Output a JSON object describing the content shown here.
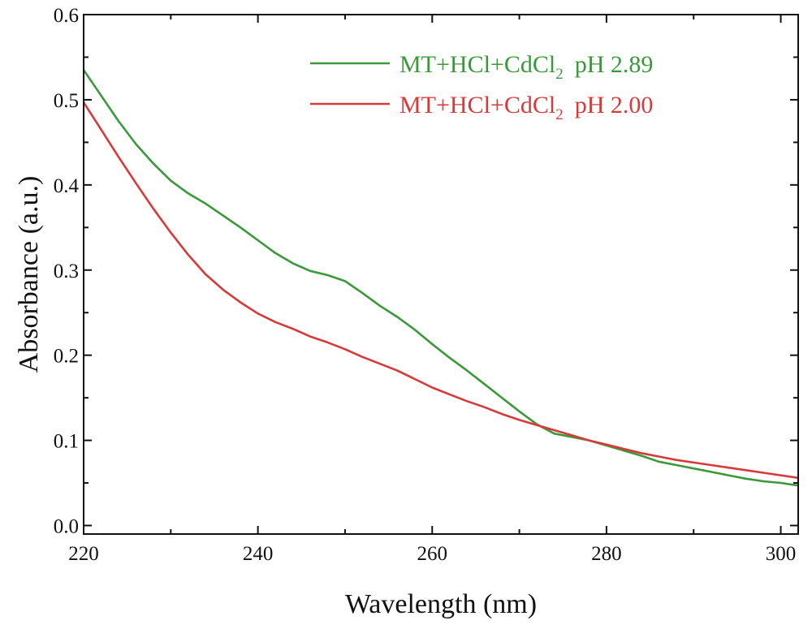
{
  "chart_data": {
    "type": "line",
    "title": "",
    "xlabel": "Wavelength (nm)",
    "ylabel": "Absorbance (a.u.)",
    "xlim": [
      220,
      302
    ],
    "ylim": [
      -0.01,
      0.6
    ],
    "x_ticks": [
      220,
      240,
      260,
      280,
      300
    ],
    "x_tick_labels": [
      "220",
      "240",
      "260",
      "280",
      "300"
    ],
    "x_minor_ticks": [
      230,
      250,
      270,
      290
    ],
    "y_ticks": [
      0.0,
      0.1,
      0.2,
      0.3,
      0.4,
      0.5,
      0.6
    ],
    "y_tick_labels": [
      "0.0",
      "0.1",
      "0.2",
      "0.3",
      "0.4",
      "0.5",
      "0.6"
    ],
    "y_minor_ticks": [
      0.05,
      0.15,
      0.25,
      0.35,
      0.45,
      0.55
    ],
    "grid": false,
    "legend_position": "top-right",
    "series": [
      {
        "name": "MT+HCl+CdCl2 pH 2.89",
        "legend_main": "MT+HCl+CdCl",
        "legend_sub": "2",
        "legend_suffix": "pH 2.89",
        "color": "#3a9a3a",
        "x": [
          220,
          222,
          224,
          226,
          228,
          230,
          232,
          234,
          236,
          238,
          240,
          242,
          244,
          246,
          248,
          250,
          252,
          254,
          256,
          258,
          260,
          262,
          264,
          266,
          268,
          270,
          272,
          274,
          276,
          278,
          280,
          282,
          284,
          286,
          288,
          290,
          292,
          294,
          296,
          298,
          300,
          302
        ],
        "values": [
          0.535,
          0.505,
          0.475,
          0.448,
          0.425,
          0.405,
          0.39,
          0.378,
          0.364,
          0.35,
          0.335,
          0.32,
          0.308,
          0.299,
          0.294,
          0.287,
          0.273,
          0.258,
          0.245,
          0.23,
          0.213,
          0.197,
          0.182,
          0.166,
          0.15,
          0.134,
          0.119,
          0.108,
          0.104,
          0.1,
          0.094,
          0.088,
          0.082,
          0.075,
          0.071,
          0.067,
          0.063,
          0.059,
          0.055,
          0.052,
          0.05,
          0.047
        ]
      },
      {
        "name": "MT+HCl+CdCl2 pH 2.00",
        "legend_main": "MT+HCl+CdCl",
        "legend_sub": "2",
        "legend_suffix": "pH 2.00",
        "color": "#d83a3a",
        "x": [
          220,
          222,
          224,
          226,
          228,
          230,
          232,
          234,
          236,
          238,
          240,
          242,
          244,
          246,
          248,
          250,
          252,
          254,
          256,
          258,
          260,
          262,
          264,
          266,
          268,
          270,
          272,
          274,
          276,
          278,
          280,
          282,
          284,
          286,
          288,
          290,
          292,
          294,
          296,
          298,
          300,
          302
        ],
        "values": [
          0.497,
          0.465,
          0.433,
          0.402,
          0.372,
          0.344,
          0.318,
          0.295,
          0.277,
          0.262,
          0.249,
          0.239,
          0.231,
          0.222,
          0.215,
          0.207,
          0.198,
          0.19,
          0.182,
          0.172,
          0.162,
          0.154,
          0.146,
          0.139,
          0.131,
          0.124,
          0.118,
          0.112,
          0.106,
          0.1,
          0.095,
          0.09,
          0.085,
          0.081,
          0.077,
          0.074,
          0.071,
          0.068,
          0.065,
          0.062,
          0.059,
          0.056
        ]
      }
    ]
  }
}
